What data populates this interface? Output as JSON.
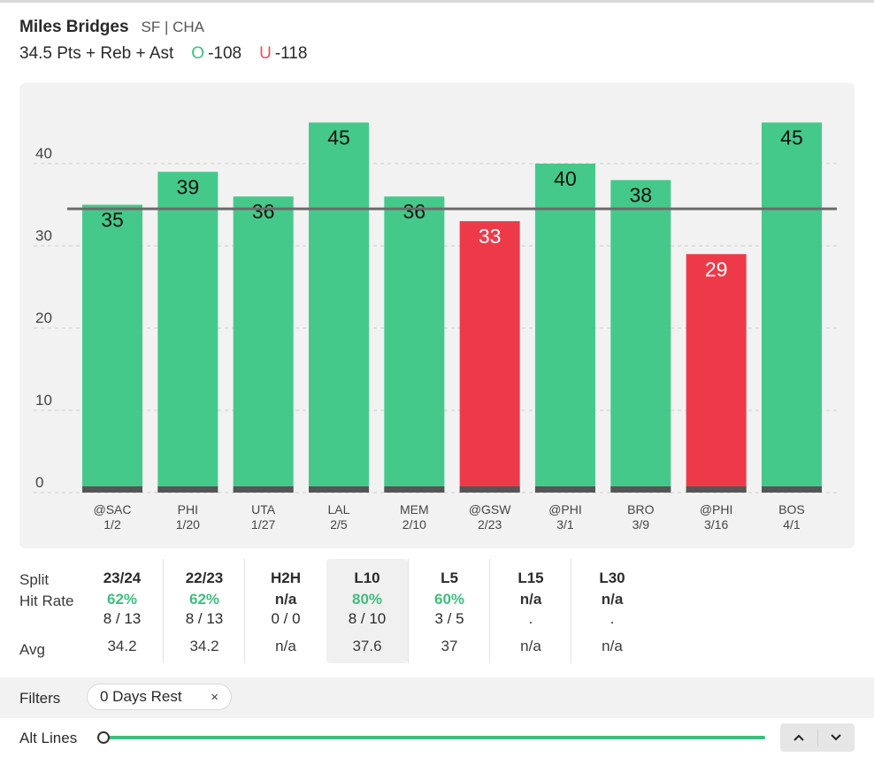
{
  "header": {
    "player_name": "Miles Bridges",
    "team": "SF | CHA",
    "prop": "34.5 Pts + Reb + Ast",
    "over_letter": "O",
    "over_odds": "-108",
    "under_letter": "U",
    "under_odds": "-118"
  },
  "colors": {
    "hit": "#45c98a",
    "miss": "#ee3a48",
    "accent": "#3dbf7e",
    "line": "#6b6b6b"
  },
  "chart_data": {
    "type": "bar",
    "title": "",
    "xlabel": "",
    "ylabel": "",
    "ylim": [
      0,
      45
    ],
    "yticks": [
      0,
      10,
      20,
      30,
      40
    ],
    "line_value": 34.5,
    "categories": [
      "@SAC",
      "PHI",
      "UTA",
      "LAL",
      "MEM",
      "@GSW",
      "@PHI",
      "BRO",
      "@PHI",
      "BOS"
    ],
    "dates": [
      "1/2",
      "1/20",
      "1/27",
      "2/5",
      "2/10",
      "2/23",
      "3/1",
      "3/9",
      "3/16",
      "4/1"
    ],
    "values": [
      35,
      39,
      36,
      45,
      36,
      33,
      40,
      38,
      29,
      45
    ]
  },
  "stats": {
    "labels": {
      "split": "Split",
      "hit_rate": "Hit Rate",
      "avg": "Avg"
    },
    "columns": [
      {
        "head": "23/24",
        "rate": "62%",
        "frac": "8 / 13",
        "avg": "34.2"
      },
      {
        "head": "22/23",
        "rate": "62%",
        "frac": "8 / 13",
        "avg": "34.2"
      },
      {
        "head": "H2H",
        "rate": "n/a",
        "frac": "0 / 0",
        "avg": "n/a"
      },
      {
        "head": "L10",
        "rate": "80%",
        "frac": "8 / 10",
        "avg": "37.6"
      },
      {
        "head": "L5",
        "rate": "60%",
        "frac": "3 / 5",
        "avg": "37"
      },
      {
        "head": "L15",
        "rate": "n/a",
        "frac": ".",
        "avg": "n/a"
      },
      {
        "head": "L30",
        "rate": "n/a",
        "frac": ".",
        "avg": "n/a"
      }
    ]
  },
  "filters": {
    "label": "Filters",
    "chip_label": "0 Days Rest",
    "chip_close": "×"
  },
  "alt_lines": {
    "label": "Alt Lines"
  }
}
